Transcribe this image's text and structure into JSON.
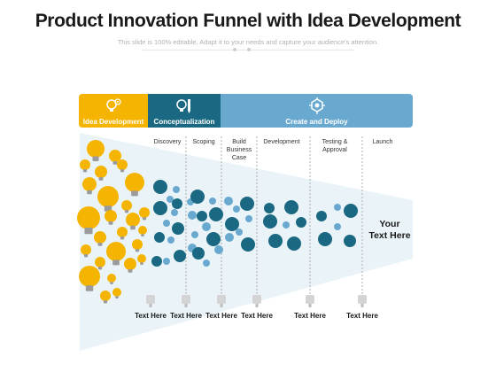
{
  "slide": {
    "title": "Product Innovation Funnel with Idea Development",
    "subtitle": "This slide is 100% editable. Adapt it to your needs and capture your audience's attention."
  },
  "headers": [
    {
      "label": "Idea Development",
      "icon": "lightbulb-gear-icon",
      "color": "#f4b400"
    },
    {
      "label": "Conceptualization",
      "icon": "bulb-pencil-icon",
      "color": "#1a6882"
    },
    {
      "label": "Create and Deploy",
      "icon": "hexagon-network-icon",
      "color": "#6aa9cf"
    }
  ],
  "stages": [
    {
      "label": "Discovery"
    },
    {
      "label": "Scoping"
    },
    {
      "label": "Build\nBusiness\nCase"
    },
    {
      "label": "Development"
    },
    {
      "label": "Testing &\nApproval"
    },
    {
      "label": "Launch"
    }
  ],
  "bottom_labels": [
    "Text Here",
    "Text Here",
    "Text Here",
    "Text Here",
    "Text Here",
    "Text Here"
  ],
  "callout": "Your\nText Here",
  "colors": {
    "idea_yellow": "#f4b400",
    "dark_teal": "#1a6882",
    "light_blue": "#6aa9cf",
    "funnel_fill": "#eaf4f8"
  }
}
